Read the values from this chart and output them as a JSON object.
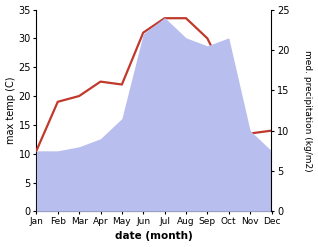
{
  "months": [
    "Jan",
    "Feb",
    "Mar",
    "Apr",
    "May",
    "Jun",
    "Jul",
    "Aug",
    "Sep",
    "Oct",
    "Nov",
    "Dec"
  ],
  "temp": [
    10.5,
    19.0,
    20.0,
    22.5,
    22.0,
    31.0,
    33.5,
    33.5,
    30.0,
    22.5,
    13.5,
    14.0
  ],
  "precip": [
    7.5,
    7.5,
    8.0,
    9.0,
    11.5,
    22.0,
    24.0,
    21.5,
    20.5,
    21.5,
    10.0,
    7.5
  ],
  "temp_color": "#c0392b",
  "precip_fill": "#b8bfee",
  "temp_ylim": [
    0,
    35
  ],
  "precip_ylim": [
    0,
    25
  ],
  "temp_yticks": [
    0,
    5,
    10,
    15,
    20,
    25,
    30,
    35
  ],
  "precip_yticks": [
    0,
    5,
    10,
    15,
    20,
    25
  ],
  "ylabel_left": "max temp (C)",
  "ylabel_right": "med. precipitation (kg/m2)",
  "xlabel": "date (month)",
  "bg_color": "#ffffff",
  "temp_linewidth": 1.6
}
